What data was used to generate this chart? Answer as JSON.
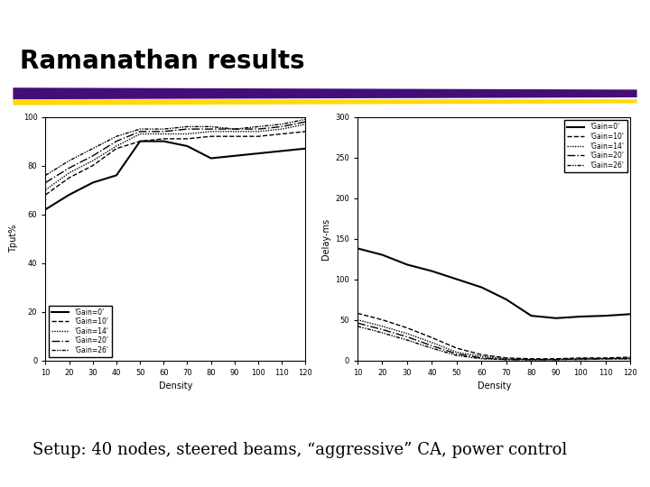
{
  "title": "Ramanathan results",
  "subtitle": "Setup: 40 nodes, steered beams, “aggressive” CA, power control",
  "background_color": "#ffffff",
  "density": [
    10,
    20,
    30,
    40,
    50,
    60,
    70,
    80,
    90,
    100,
    110,
    120
  ],
  "tput_gain0": [
    62,
    68,
    73,
    76,
    90,
    90,
    88,
    83,
    84,
    85,
    86,
    87
  ],
  "tput_gain10": [
    68,
    75,
    80,
    87,
    90,
    91,
    91,
    92,
    92,
    92,
    93,
    94
  ],
  "tput_gain14": [
    70,
    77,
    82,
    88,
    93,
    93,
    93,
    94,
    94,
    94,
    95,
    97
  ],
  "tput_gain20": [
    73,
    79,
    84,
    90,
    94,
    94,
    95,
    95,
    95,
    95,
    96,
    98
  ],
  "tput_gain26": [
    76,
    82,
    87,
    92,
    95,
    95,
    96,
    96,
    95,
    96,
    97,
    99
  ],
  "delay_gain0": [
    138,
    130,
    118,
    110,
    100,
    90,
    75,
    55,
    52,
    54,
    55,
    57
  ],
  "delay_gain10": [
    58,
    50,
    40,
    28,
    15,
    7,
    3,
    2,
    2,
    3,
    3,
    4
  ],
  "delay_gain14": [
    50,
    42,
    33,
    22,
    10,
    5,
    2,
    1,
    1,
    2,
    2,
    3
  ],
  "delay_gain20": [
    46,
    38,
    29,
    18,
    8,
    3,
    1,
    1,
    1,
    2,
    2,
    2
  ],
  "delay_gain26": [
    42,
    34,
    25,
    15,
    6,
    2,
    1,
    1,
    1,
    1,
    2,
    2
  ],
  "tput_ylim": [
    0,
    100
  ],
  "delay_ylim": [
    0,
    300
  ],
  "tput_yticks": [
    0,
    20,
    40,
    60,
    80,
    100
  ],
  "delay_yticks": [
    0,
    50,
    100,
    150,
    200,
    250,
    300
  ],
  "xticks": [
    10,
    20,
    30,
    40,
    50,
    60,
    70,
    80,
    90,
    100,
    110,
    120
  ],
  "legend_labels": [
    "'Gain=0'",
    "'Gain=10'",
    "'Gain=14'",
    "'Gain=20'",
    "'Gain=26'"
  ],
  "line_widths": [
    1.5,
    1.0,
    1.0,
    1.0,
    1.0
  ],
  "title_fontsize": 20,
  "subtitle_fontsize": 13
}
